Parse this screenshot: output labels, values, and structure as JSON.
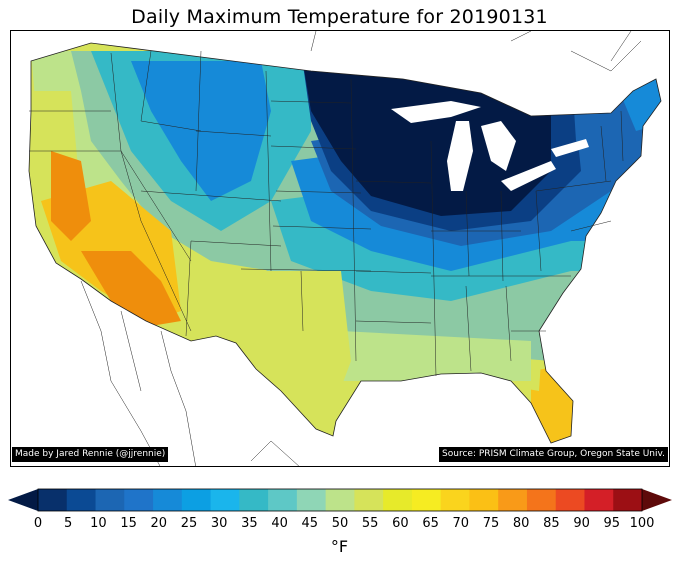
{
  "title": "Daily Maximum Temperature for 20190131",
  "credits": {
    "left": "Made by Jared Rennie (@jjrennie)",
    "right": "Source: PRISM Climate Group, Oregon State Univ."
  },
  "legend": {
    "ticks": [
      "0",
      "5",
      "10",
      "15",
      "20",
      "25",
      "30",
      "35",
      "40",
      "45",
      "50",
      "55",
      "60",
      "65",
      "70",
      "75",
      "80",
      "85",
      "90",
      "95",
      "100"
    ],
    "units": "°F",
    "under_color": "#031a45",
    "over_color": "#5e0a0a",
    "colors": [
      "#08306b",
      "#0b4a94",
      "#1c66b3",
      "#1f74c9",
      "#168ad8",
      "#0c9fe3",
      "#1ab5ec",
      "#35b9c6",
      "#5ec8c6",
      "#8fd6b6",
      "#bde38a",
      "#d6e35a",
      "#e7ea2a",
      "#f6ec22",
      "#fad41d",
      "#fbc015",
      "#f99a18",
      "#f4741b",
      "#ec4a22",
      "#d41f27",
      "#9c0f14"
    ]
  },
  "map_colors": {
    "coldest": "#031a45",
    "very_cold": "#0b3f84",
    "cold": "#1c66b3",
    "cool": "#168ad8",
    "mild_cool": "#35b9c6",
    "mild": "#8cc9a4",
    "warmish": "#bde38a",
    "warm": "#d6e35a",
    "hot": "#f6c31a",
    "hottest": "#ef8e0c",
    "great_lakes": "#ffffff",
    "borders": "#222222"
  }
}
